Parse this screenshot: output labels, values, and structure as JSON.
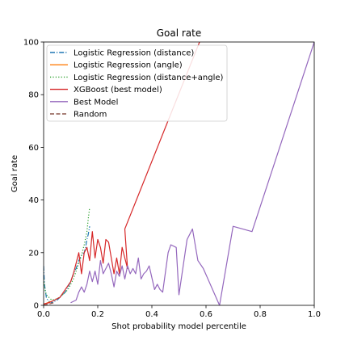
{
  "chart_data": {
    "type": "line",
    "title": "Goal rate",
    "xlabel": "Shot probability model percentile",
    "ylabel": "Goal rate",
    "xlim": [
      0.0,
      1.0
    ],
    "ylim": [
      0,
      100
    ],
    "xticks": [
      "0.0",
      "0.2",
      "0.4",
      "0.6",
      "0.8",
      "1.0"
    ],
    "yticks": [
      "0",
      "20",
      "40",
      "60",
      "80",
      "100"
    ],
    "grid": false,
    "legend_position": "top-left",
    "series": [
      {
        "name": "Logistic Regression (distance)",
        "color": "#1f77b4",
        "dash": "dashdot",
        "x": [
          0.0,
          0.003,
          0.006,
          0.01,
          0.015,
          0.02,
          0.03,
          0.04,
          0.05,
          0.06,
          0.07,
          0.08,
          0.09,
          0.1,
          0.11,
          0.12,
          0.13,
          0.14,
          0.15,
          0.155,
          0.16,
          0.165,
          0.17
        ],
        "y": [
          15,
          8,
          6,
          3,
          2,
          1.5,
          1,
          1.5,
          2,
          3,
          4,
          5,
          7,
          9,
          12,
          14,
          17,
          19,
          20,
          22,
          25,
          27,
          30
        ]
      },
      {
        "name": "Logistic Regression (angle)",
        "color": "#ff7f0e",
        "dash": "solid",
        "x": [
          0.0,
          0.01,
          0.02,
          0.03
        ],
        "y": [
          0.5,
          0.8,
          1.2,
          1.5
        ]
      },
      {
        "name": "Logistic Regression (distance+angle)",
        "color": "#2ca02c",
        "dash": "dotted",
        "x": [
          0.0,
          0.005,
          0.01,
          0.02,
          0.03,
          0.05,
          0.07,
          0.09,
          0.1,
          0.11,
          0.12,
          0.13,
          0.14,
          0.15,
          0.16,
          0.165,
          0.17
        ],
        "y": [
          10,
          6,
          4,
          3,
          2,
          2.5,
          4,
          6,
          8,
          10,
          13,
          16,
          19,
          23,
          28,
          33,
          37
        ]
      },
      {
        "name": "XGBoost (best model)",
        "color": "#d62728",
        "dash": "solid",
        "x": [
          0.0,
          0.02,
          0.04,
          0.06,
          0.08,
          0.1,
          0.11,
          0.12,
          0.13,
          0.14,
          0.15,
          0.16,
          0.17,
          0.18,
          0.19,
          0.2,
          0.21,
          0.22,
          0.23,
          0.24,
          0.25,
          0.26,
          0.27,
          0.28,
          0.29,
          0.31,
          0.3,
          0.58
        ],
        "y": [
          0.5,
          1,
          2,
          3,
          6,
          9,
          12,
          16,
          20,
          12,
          20,
          22,
          17,
          28,
          18,
          25,
          22,
          16,
          25,
          24,
          18,
          12,
          18,
          12,
          22,
          14,
          29,
          101
        ]
      },
      {
        "name": "Best Model",
        "color": "#9467bd",
        "dash": "solid",
        "x": [
          0.1,
          0.12,
          0.13,
          0.14,
          0.15,
          0.16,
          0.17,
          0.18,
          0.19,
          0.2,
          0.21,
          0.22,
          0.23,
          0.24,
          0.25,
          0.26,
          0.27,
          0.28,
          0.29,
          0.3,
          0.31,
          0.32,
          0.33,
          0.34,
          0.35,
          0.36,
          0.37,
          0.38,
          0.39,
          0.41,
          0.42,
          0.43,
          0.44,
          0.46,
          0.47,
          0.49,
          0.5,
          0.52,
          0.53,
          0.55,
          0.57,
          0.59,
          0.65,
          0.7,
          0.77,
          1.0
        ],
        "y": [
          1,
          2,
          5,
          7,
          5,
          8,
          13,
          9,
          13,
          8,
          17,
          12,
          14,
          16,
          12,
          7,
          13,
          11,
          15,
          10,
          15,
          12,
          14,
          12,
          18,
          10,
          12,
          13,
          15,
          6,
          8,
          6,
          5,
          20,
          23,
          22,
          4,
          18,
          25,
          29,
          17,
          14,
          0,
          30,
          28,
          100
        ]
      },
      {
        "name": "Random",
        "color": "#8c564b",
        "dash": "dashed",
        "x": [
          0.0,
          0.01,
          0.02,
          0.03,
          0.04
        ],
        "y": [
          0,
          0.3,
          0.5,
          0.8,
          1.0
        ]
      }
    ]
  }
}
